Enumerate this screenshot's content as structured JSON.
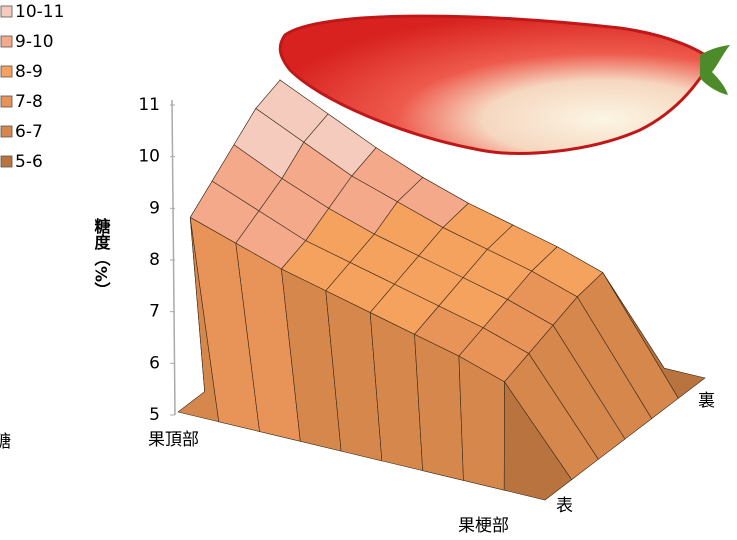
{
  "chart_data": {
    "type": "surface",
    "side_text": "糖",
    "zlabel": "糖度（%）",
    "zlim": [
      5,
      11
    ],
    "zticks": [
      5,
      6,
      7,
      8,
      9,
      10,
      11
    ],
    "x_start_label": "果頂部",
    "x_end_label": "果梗部",
    "y_start_label": "表",
    "y_end_label": "裏",
    "series": [
      {
        "name": "10-11",
        "color": "#f5cbbd"
      },
      {
        "name": "9-10",
        "color": "#f3a98a"
      },
      {
        "name": "8-9",
        "color": "#f4a25e"
      },
      {
        "name": "7-8",
        "color": "#e89358"
      },
      {
        "name": "6-7",
        "color": "#d6874c"
      },
      {
        "name": "5-6",
        "color": "#b8733f"
      }
    ],
    "z": [
      [
        5,
        5,
        5,
        5,
        5,
        5,
        5
      ],
      [
        5,
        9.6,
        10.0,
        10.4,
        10.8,
        11.0,
        5
      ],
      [
        5,
        9.2,
        9.5,
        9.8,
        10.2,
        10.4,
        5
      ],
      [
        5,
        8.8,
        9.0,
        9.3,
        9.6,
        9.8,
        5
      ],
      [
        5,
        8.5,
        8.7,
        8.9,
        9.2,
        9.3,
        5
      ],
      [
        5,
        8.2,
        8.4,
        8.6,
        8.8,
        8.9,
        5
      ],
      [
        5,
        7.9,
        8.1,
        8.3,
        8.5,
        8.6,
        5
      ],
      [
        5,
        7.6,
        7.8,
        8.0,
        8.2,
        8.3,
        5
      ],
      [
        5,
        7.2,
        7.4,
        7.6,
        7.8,
        7.9,
        5
      ],
      [
        5,
        5,
        5,
        5,
        5,
        5,
        5
      ]
    ]
  }
}
